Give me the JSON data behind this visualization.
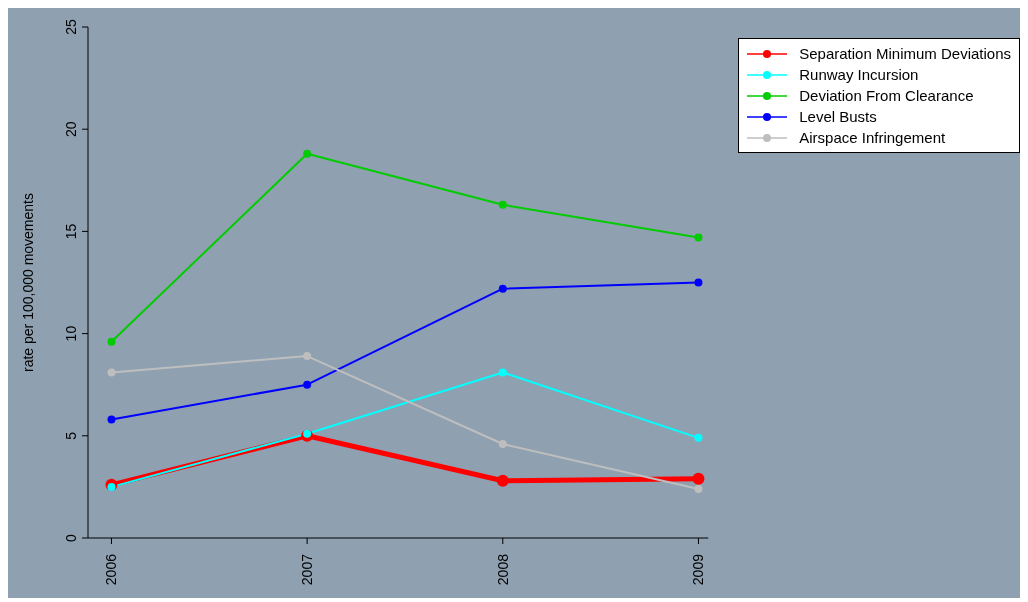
{
  "chart_data": {
    "type": "line",
    "ylabel": "rate per 100,000 movements",
    "categories": [
      "2006",
      "2007",
      "2008",
      "2009"
    ],
    "series": [
      {
        "name": "Separation Minimum Deviations",
        "color": "#ff0000",
        "values": [
          2.6,
          5.0,
          2.8,
          2.9
        ]
      },
      {
        "name": "Runway Incursion",
        "color": "#00ffff",
        "values": [
          2.5,
          5.1,
          8.1,
          4.9
        ]
      },
      {
        "name": "Deviation From Clearance",
        "color": "#00cc00",
        "values": [
          9.6,
          18.8,
          16.3,
          14.7
        ]
      },
      {
        "name": "Level Busts",
        "color": "#0000ff",
        "values": [
          5.8,
          7.5,
          12.2,
          12.5
        ]
      },
      {
        "name": "Airspace Infringement",
        "color": "#bebebe",
        "values": [
          8.1,
          8.9,
          4.6,
          2.4
        ]
      }
    ],
    "ylim": [
      0,
      25
    ],
    "yticks": [
      0,
      5,
      10,
      15,
      20,
      25
    ],
    "grid": false,
    "legend": "top right",
    "marker": "circle",
    "line_style": "solid"
  }
}
